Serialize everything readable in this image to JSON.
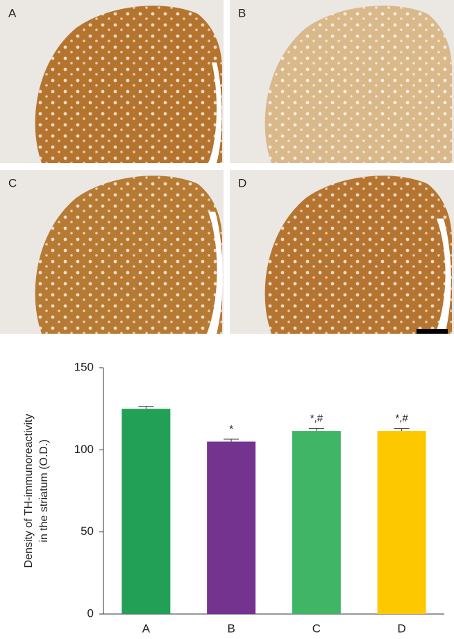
{
  "panels": [
    "A",
    "B",
    "C",
    "D"
  ],
  "chart_data": {
    "type": "bar",
    "ylabel": [
      "Density of TH-immunoreactivity",
      "in the striatum (O.D.)"
    ],
    "categories": [
      "A",
      "B",
      "C",
      "D"
    ],
    "values": [
      125,
      105,
      111.5,
      111.5
    ],
    "errors": [
      1.5,
      1.5,
      1.5,
      1.5
    ],
    "annotations": [
      null,
      "*",
      "*,#",
      "*,#"
    ],
    "colors": [
      "#22a055",
      "#73338f",
      "#3fb565",
      "#fdc800"
    ],
    "ylim": [
      0,
      150
    ],
    "yticks": [
      0,
      50,
      100,
      150
    ],
    "grid": false
  }
}
